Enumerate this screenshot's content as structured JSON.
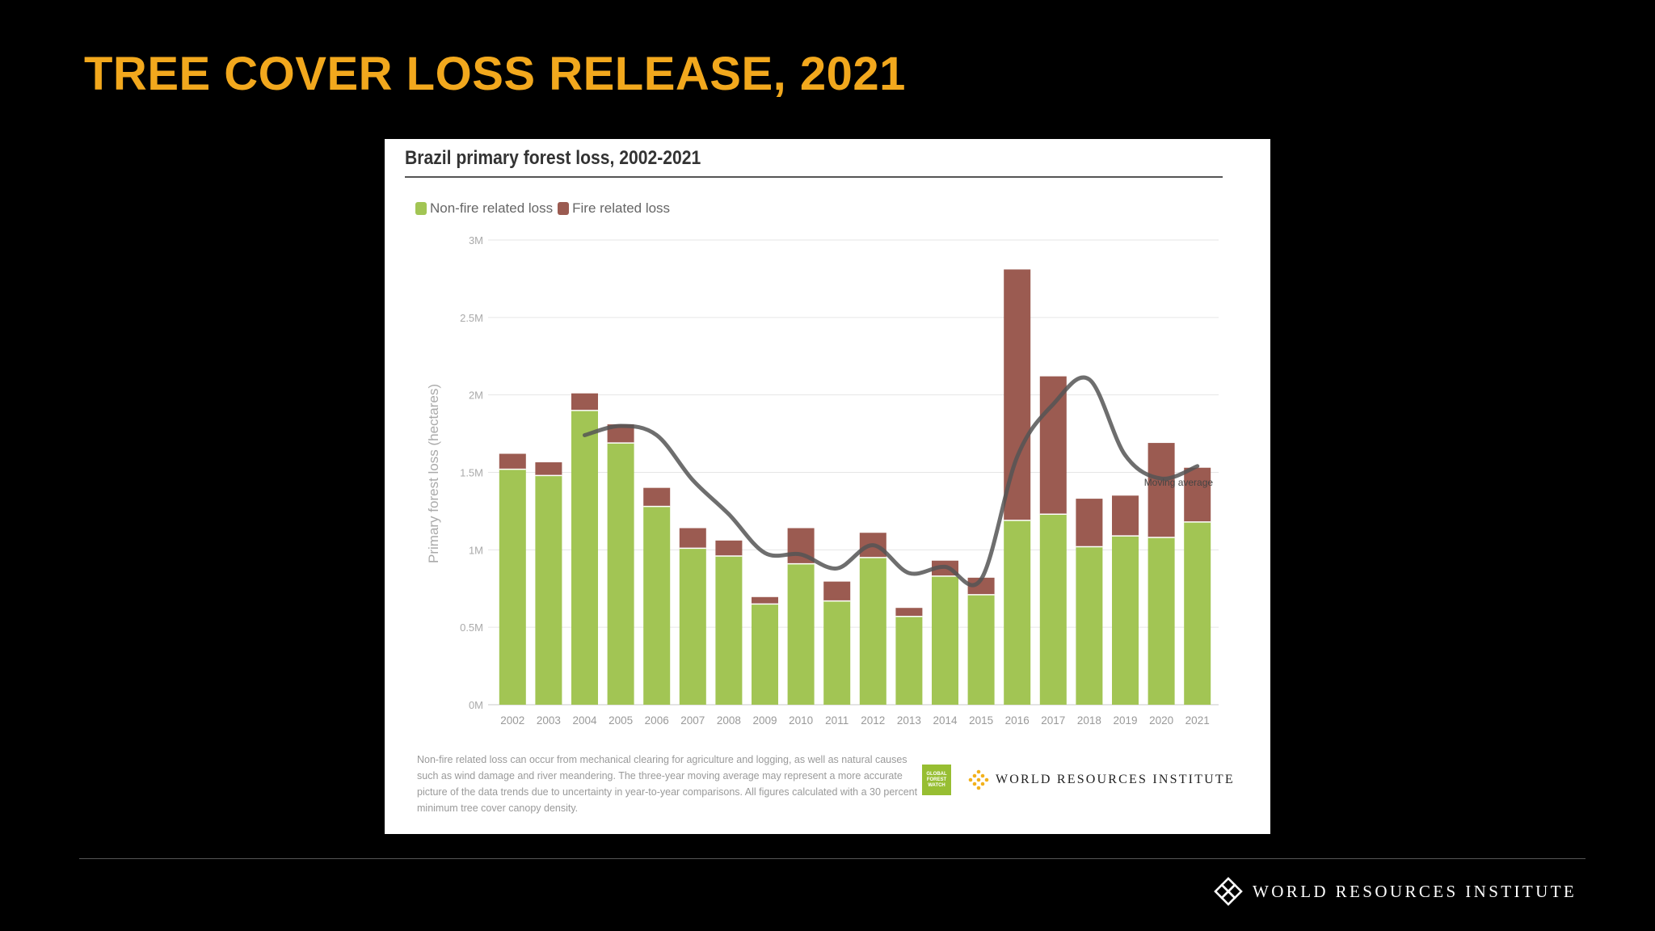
{
  "slide": {
    "title": "TREE COVER LOSS RELEASE, 2021",
    "footer_logo_text": "WORLD RESOURCES INSTITUTE"
  },
  "panel": {
    "note": "Non-fire related loss can occur from mechanical clearing for agriculture and logging, as well as natural causes such as wind damage and river meandering. The three-year moving average may represent a more accurate picture of the data trends due to uncertainty in year-to-year comparisons. All figures calculated with a 30 percent minimum tree cover canopy density.",
    "gfw_logo_text": "GLOBAL FOREST WATCH",
    "wri_logo_text": "WORLD RESOURCES INSTITUTE"
  },
  "colors": {
    "title": "#f2a81d",
    "non_fire": "#a2c554",
    "fire": "#9b5b51",
    "moving_average": "#555555"
  },
  "chart_data": {
    "type": "bar",
    "stacked": true,
    "title": "Brazil primary forest loss, 2002-2021",
    "ylabel": "Primary forest loss (hectares)",
    "xlabel": "",
    "ylim": [
      0,
      3000000
    ],
    "yticks": [
      0,
      500000,
      1000000,
      1500000,
      2000000,
      2500000,
      3000000
    ],
    "ytick_labels": [
      "0M",
      "0.5M",
      "1M",
      "1.5M",
      "2M",
      "2.5M",
      "3M"
    ],
    "grid": true,
    "legend_position": "top-left",
    "categories": [
      "2002",
      "2003",
      "2004",
      "2005",
      "2006",
      "2007",
      "2008",
      "2009",
      "2010",
      "2011",
      "2012",
      "2013",
      "2014",
      "2015",
      "2016",
      "2017",
      "2018",
      "2019",
      "2020",
      "2021"
    ],
    "series": [
      {
        "name": "Non-fire related loss",
        "color": "#a2c554",
        "values": [
          1520000,
          1480000,
          1900000,
          1690000,
          1280000,
          1010000,
          960000,
          650000,
          910000,
          670000,
          950000,
          570000,
          830000,
          710000,
          1190000,
          1230000,
          1020000,
          1090000,
          1080000,
          1180000
        ]
      },
      {
        "name": "Fire related loss",
        "color": "#9b5b51",
        "values": [
          100000,
          85000,
          110000,
          120000,
          120000,
          130000,
          100000,
          45000,
          230000,
          125000,
          160000,
          55000,
          100000,
          110000,
          1620000,
          890000,
          310000,
          260000,
          610000,
          350000
        ]
      }
    ],
    "moving_average": {
      "name": "Moving average",
      "categories": [
        "2004",
        "2005",
        "2006",
        "2007",
        "2008",
        "2009",
        "2010",
        "2011",
        "2012",
        "2013",
        "2014",
        "2015",
        "2016",
        "2017",
        "2018",
        "2019",
        "2020",
        "2021"
      ],
      "values": [
        1740000,
        1800000,
        1740000,
        1450000,
        1230000,
        980000,
        970000,
        880000,
        1030000,
        850000,
        890000,
        810000,
        1600000,
        1940000,
        2100000,
        1610000,
        1460000,
        1540000
      ]
    }
  }
}
